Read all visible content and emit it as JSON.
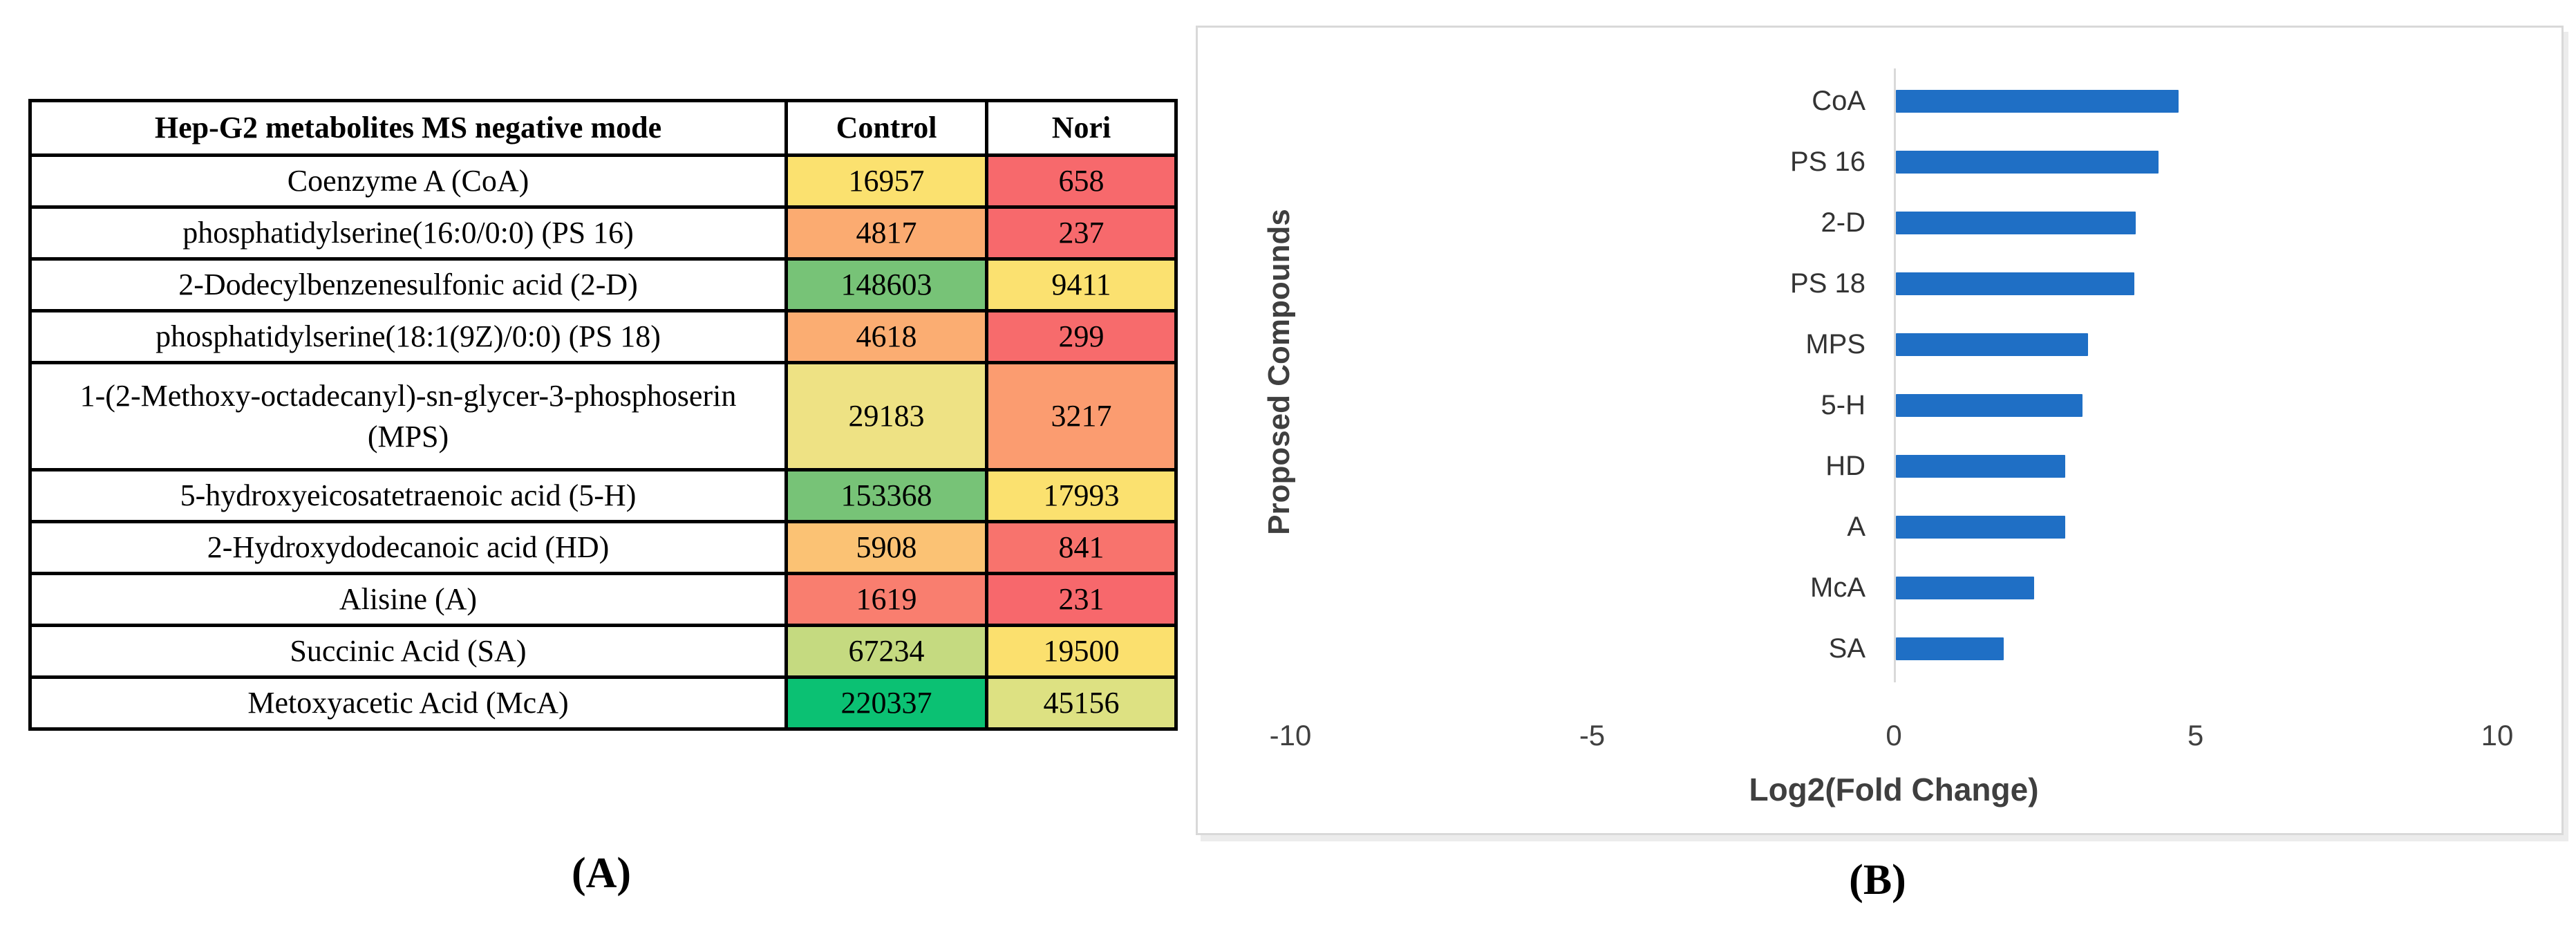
{
  "panel_a": {
    "label": "(A)",
    "table": {
      "header": [
        "Hep-G2 metabolites MS negative mode",
        "Control",
        "Nori"
      ],
      "rows": [
        {
          "name": "Coenzyme A (CoA)",
          "control": "16957",
          "control_color": "#FBE16F",
          "nori": "658",
          "nori_color": "#F7696C"
        },
        {
          "name": "phosphatidylserine(16:0/0:0) (PS 16)",
          "control": "4817",
          "control_color": "#FBAB71",
          "nori": "237",
          "nori_color": "#F7696C"
        },
        {
          "name": "2-Dodecylbenzenesulfonic acid (2-D)",
          "control": "148603",
          "control_color": "#77C377",
          "nori": "9411",
          "nori_color": "#FBE170"
        },
        {
          "name": "phosphatidylserine(18:1(9Z)/0:0) (PS 18)",
          "control": "4618",
          "control_color": "#FBAD72",
          "nori": "299",
          "nori_color": "#F76B6C"
        },
        {
          "name": "1-(2-Methoxy-octadecanyl)-sn-glycer-3-phosphoserin (MPS)",
          "control": "29183",
          "control_color": "#EEE284",
          "nori": "3217",
          "nori_color": "#FB9C70"
        },
        {
          "name": "5-hydroxyeicosatetraenoic acid  (5-H)",
          "control": "153368",
          "control_color": "#77C377",
          "nori": "17993",
          "nori_color": "#FBE16F"
        },
        {
          "name": "2-Hydroxydodecanoic acid (HD)",
          "control": "5908",
          "control_color": "#FBC274",
          "nori": "841",
          "nori_color": "#F8736D"
        },
        {
          "name": "Alisine (A)",
          "control": "1619",
          "control_color": "#F97E6F",
          "nori": "231",
          "nori_color": "#F7686C"
        },
        {
          "name": "Succinic Acid (SA)",
          "control": "67234",
          "control_color": "#C5DA80",
          "nori": "19500",
          "nori_color": "#FBE06E"
        },
        {
          "name": "Metoxyacetic Acid  (McA)",
          "control": "220337",
          "control_color": "#0BC173",
          "nori": "45156",
          "nori_color": "#DDE182"
        }
      ]
    }
  },
  "panel_b": {
    "label": "(B)"
  },
  "chart_data": {
    "type": "bar",
    "orientation": "horizontal",
    "categories": [
      "CoA",
      "PS 16",
      "2-D",
      "PS 18",
      "MPS",
      "5-H",
      "HD",
      "A",
      "McA",
      "SA"
    ],
    "values": [
      4.69,
      4.35,
      3.98,
      3.95,
      3.18,
      3.09,
      2.81,
      2.81,
      2.29,
      1.79
    ],
    "title": "",
    "xlabel": "Log2(Fold Change)",
    "ylabel": "Proposed Compounds",
    "xlim": [
      -10,
      10
    ],
    "x_ticks": [
      -10,
      -5,
      0,
      5,
      10
    ],
    "bar_color": "#1F6FC5",
    "axis_line_color": "#D9D9D9",
    "grid": false,
    "legend": false
  }
}
